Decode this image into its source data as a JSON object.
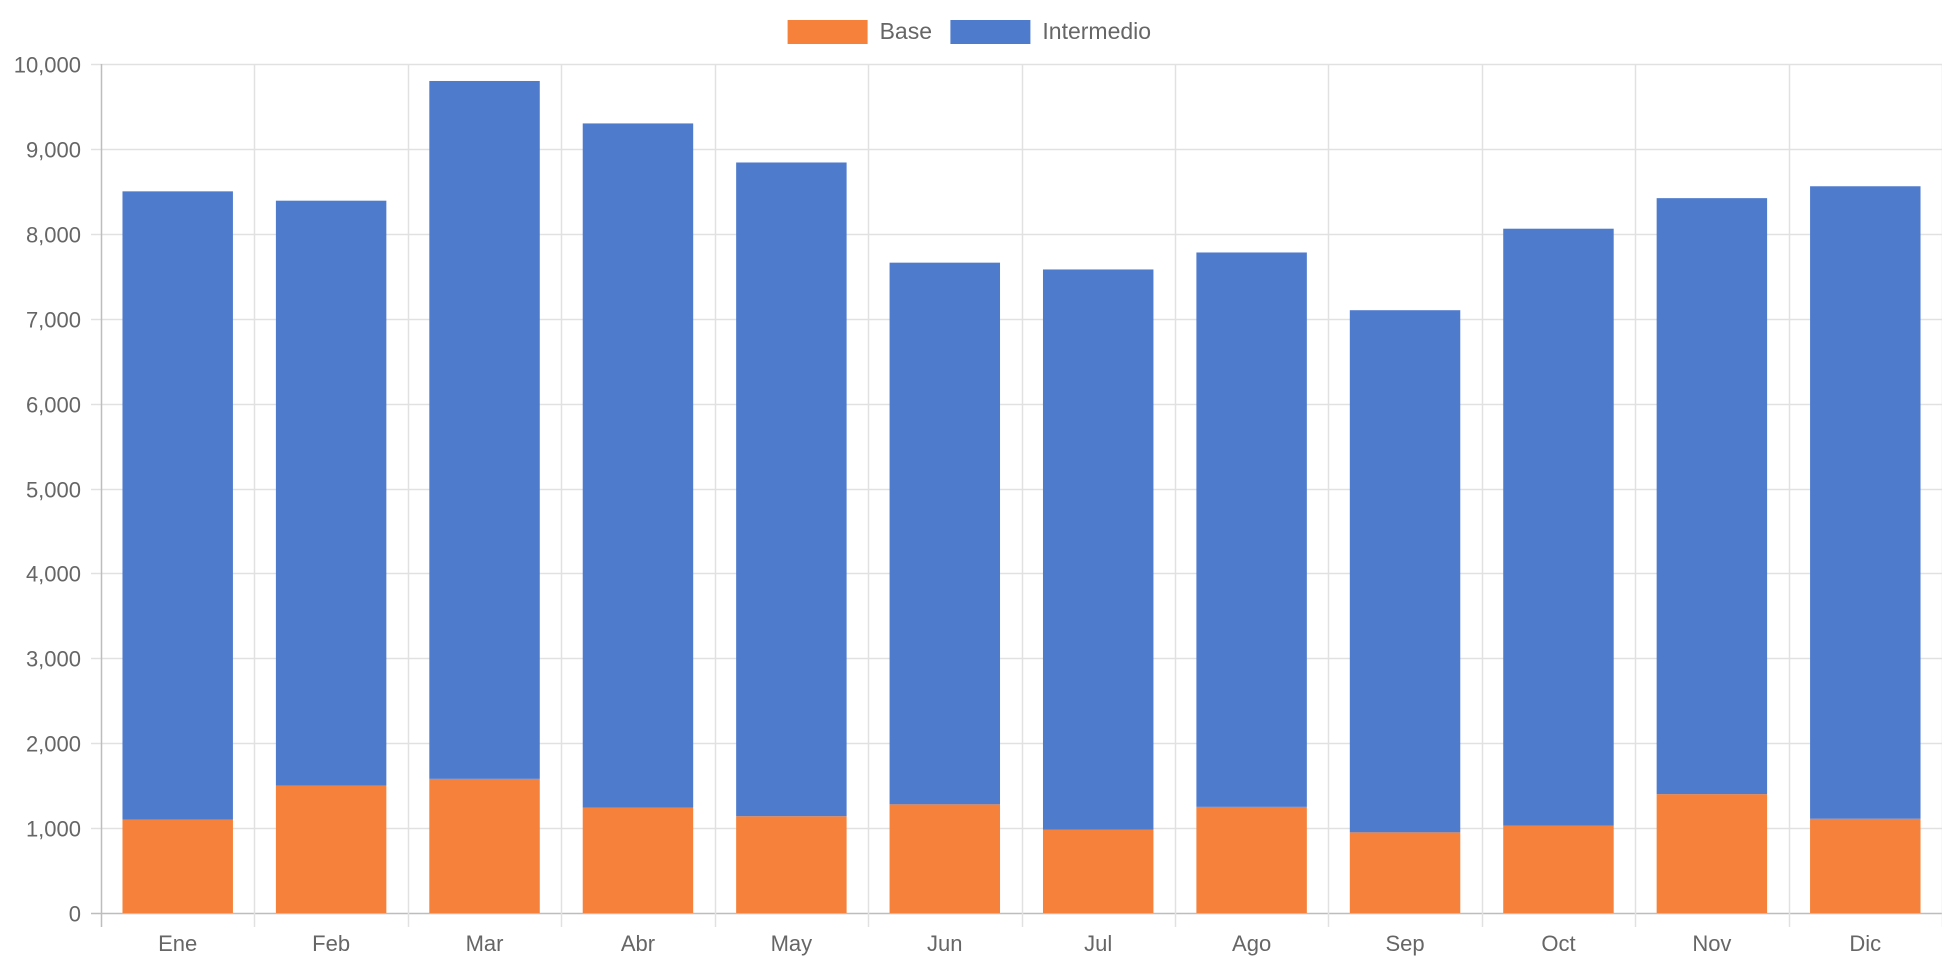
{
  "chart_data": {
    "type": "bar",
    "stacked": true,
    "categories": [
      "Ene",
      "Feb",
      "Mar",
      "Abr",
      "May",
      "Jun",
      "Jul",
      "Ago",
      "Sep",
      "Oct",
      "Nov",
      "Dic"
    ],
    "series": [
      {
        "name": "Base",
        "color": "#f5813a",
        "values": [
          1100,
          1500,
          1580,
          1240,
          1140,
          1280,
          980,
          1250,
          950,
          1030,
          1400,
          1110
        ]
      },
      {
        "name": "Intermedio",
        "color": "#4f7bcd",
        "values": [
          7400,
          6890,
          8220,
          8060,
          7700,
          6380,
          6600,
          6530,
          6150,
          7030,
          7020,
          7450
        ]
      }
    ],
    "ylim": [
      0,
      10000
    ],
    "yticks": [
      "0",
      "1,000",
      "2,000",
      "3,000",
      "4,000",
      "5,000",
      "6,000",
      "7,000",
      "8,000",
      "9,000",
      "10,000"
    ],
    "grid": true,
    "legend": "top-center",
    "title": "",
    "xlabel": "",
    "ylabel": ""
  }
}
